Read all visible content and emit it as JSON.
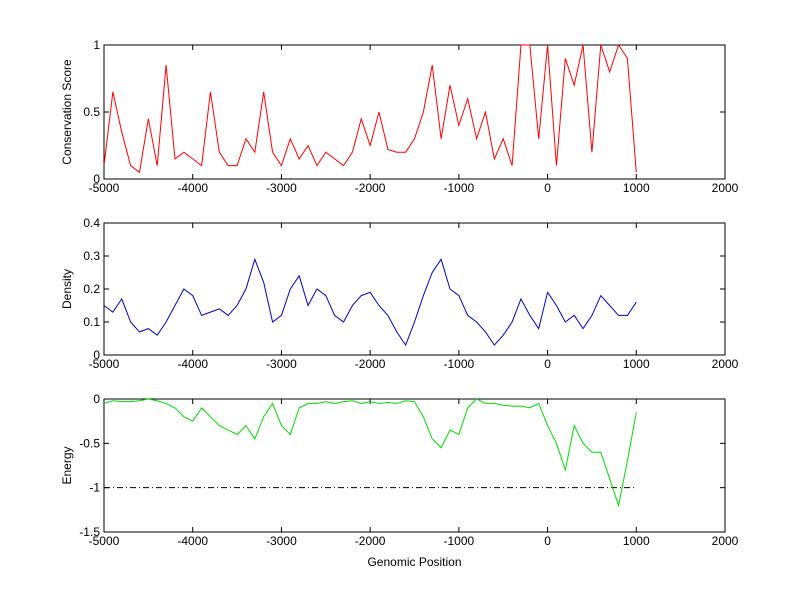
{
  "chart_data": [
    {
      "type": "line",
      "ylabel": "Conservation Score",
      "x": [
        -5000,
        -4900,
        -4800,
        -4700,
        -4600,
        -4500,
        -4400,
        -4300,
        -4200,
        -4100,
        -4000,
        -3900,
        -3800,
        -3700,
        -3600,
        -3500,
        -3400,
        -3300,
        -3200,
        -3100,
        -3000,
        -2900,
        -2800,
        -2700,
        -2600,
        -2500,
        -2400,
        -2300,
        -2200,
        -2100,
        -2000,
        -1900,
        -1800,
        -1700,
        -1600,
        -1500,
        -1400,
        -1300,
        -1200,
        -1100,
        -1000,
        -900,
        -800,
        -700,
        -600,
        -500,
        -400,
        -300,
        -200,
        -100,
        0,
        100,
        200,
        300,
        400,
        500,
        600,
        700,
        800,
        900,
        1000
      ],
      "series": [
        {
          "color": "#ff0000",
          "values": [
            0.1,
            0.65,
            0.35,
            0.1,
            0.05,
            0.45,
            0.1,
            0.85,
            0.15,
            0.2,
            0.15,
            0.1,
            0.65,
            0.2,
            0.1,
            0.1,
            0.3,
            0.2,
            0.65,
            0.2,
            0.1,
            0.3,
            0.15,
            0.25,
            0.1,
            0.2,
            0.15,
            0.1,
            0.2,
            0.45,
            0.25,
            0.5,
            0.22,
            0.2,
            0.2,
            0.3,
            0.5,
            0.85,
            0.3,
            0.7,
            0.4,
            0.6,
            0.3,
            0.5,
            0.15,
            0.3,
            0.1,
            1,
            1,
            0.3,
            1,
            0.1,
            0.9,
            0.7,
            1,
            0.2,
            1,
            0.8,
            1,
            0.9,
            0.05
          ]
        }
      ],
      "xlim": [
        -5000,
        2000
      ],
      "xticks": [
        -5000,
        -4000,
        -3000,
        -2000,
        -1000,
        0,
        1000,
        2000
      ],
      "ylim": [
        0,
        1
      ],
      "yticks": [
        0,
        0.5,
        1
      ]
    },
    {
      "type": "line",
      "ylabel": "Density",
      "x": [
        -5000,
        -4900,
        -4800,
        -4700,
        -4600,
        -4500,
        -4400,
        -4300,
        -4200,
        -4100,
        -4000,
        -3900,
        -3800,
        -3700,
        -3600,
        -3500,
        -3400,
        -3300,
        -3200,
        -3100,
        -3000,
        -2900,
        -2800,
        -2700,
        -2600,
        -2500,
        -2400,
        -2300,
        -2200,
        -2100,
        -2000,
        -1900,
        -1800,
        -1700,
        -1600,
        -1500,
        -1400,
        -1300,
        -1200,
        -1100,
        -1000,
        -900,
        -800,
        -700,
        -600,
        -500,
        -400,
        -300,
        -200,
        -100,
        0,
        100,
        200,
        300,
        400,
        500,
        600,
        700,
        800,
        900,
        1000
      ],
      "series": [
        {
          "color": "#0000cc",
          "values": [
            0.15,
            0.13,
            0.17,
            0.1,
            0.07,
            0.08,
            0.06,
            0.1,
            0.15,
            0.2,
            0.18,
            0.12,
            0.13,
            0.14,
            0.12,
            0.15,
            0.2,
            0.29,
            0.22,
            0.1,
            0.12,
            0.2,
            0.24,
            0.15,
            0.2,
            0.18,
            0.12,
            0.1,
            0.15,
            0.18,
            0.19,
            0.15,
            0.12,
            0.07,
            0.03,
            0.1,
            0.18,
            0.25,
            0.29,
            0.2,
            0.18,
            0.12,
            0.1,
            0.07,
            0.03,
            0.06,
            0.1,
            0.17,
            0.12,
            0.08,
            0.19,
            0.15,
            0.1,
            0.12,
            0.08,
            0.12,
            0.18,
            0.15,
            0.12,
            0.12,
            0.16
          ]
        }
      ],
      "xlim": [
        -5000,
        2000
      ],
      "xticks": [
        -5000,
        -4000,
        -3000,
        -2000,
        -1000,
        0,
        1000,
        2000
      ],
      "ylim": [
        0,
        0.4
      ],
      "yticks": [
        0,
        0.1,
        0.2,
        0.3,
        0.4
      ]
    },
    {
      "type": "line",
      "ylabel": "Energy",
      "xlabel": "Genomic Position",
      "x": [
        -5000,
        -4900,
        -4800,
        -4700,
        -4600,
        -4500,
        -4400,
        -4300,
        -4200,
        -4100,
        -4000,
        -3900,
        -3800,
        -3700,
        -3600,
        -3500,
        -3400,
        -3300,
        -3200,
        -3100,
        -3000,
        -2900,
        -2800,
        -2700,
        -2600,
        -2500,
        -2400,
        -2300,
        -2200,
        -2100,
        -2000,
        -1900,
        -1800,
        -1700,
        -1600,
        -1500,
        -1400,
        -1300,
        -1200,
        -1100,
        -1000,
        -900,
        -800,
        -700,
        -600,
        -500,
        -400,
        -300,
        -200,
        -100,
        0,
        100,
        200,
        300,
        400,
        500,
        600,
        700,
        800,
        900,
        1000
      ],
      "series": [
        {
          "color": "#00dd00",
          "values": [
            -0.05,
            -0.02,
            -0.03,
            -0.03,
            -0.02,
            0,
            -0.02,
            -0.05,
            -0.1,
            -0.2,
            -0.25,
            -0.1,
            -0.2,
            -0.3,
            -0.35,
            -0.4,
            -0.3,
            -0.45,
            -0.2,
            -0.05,
            -0.3,
            -0.4,
            -0.1,
            -0.05,
            -0.05,
            -0.03,
            -0.05,
            -0.03,
            -0.02,
            -0.05,
            -0.03,
            -0.05,
            -0.04,
            -0.05,
            -0.02,
            -0.03,
            -0.2,
            -0.45,
            -0.55,
            -0.35,
            -0.4,
            -0.1,
            0,
            -0.05,
            -0.05,
            -0.07,
            -0.08,
            -0.08,
            -0.1,
            -0.05,
            -0.3,
            -0.5,
            -0.8,
            -0.3,
            -0.5,
            -0.6,
            -0.6,
            -0.9,
            -1.2,
            -0.7,
            -0.15
          ]
        }
      ],
      "reference_line": {
        "value": -1,
        "x": [
          -5000,
          1000
        ],
        "color": "#000000",
        "style": "dashdot"
      },
      "xlim": [
        -5000,
        2000
      ],
      "xticks": [
        -5000,
        -4000,
        -3000,
        -2000,
        -1000,
        0,
        1000,
        2000
      ],
      "ylim": [
        -1.5,
        0
      ],
      "yticks": [
        -1.5,
        -1,
        -0.5,
        0
      ]
    }
  ]
}
